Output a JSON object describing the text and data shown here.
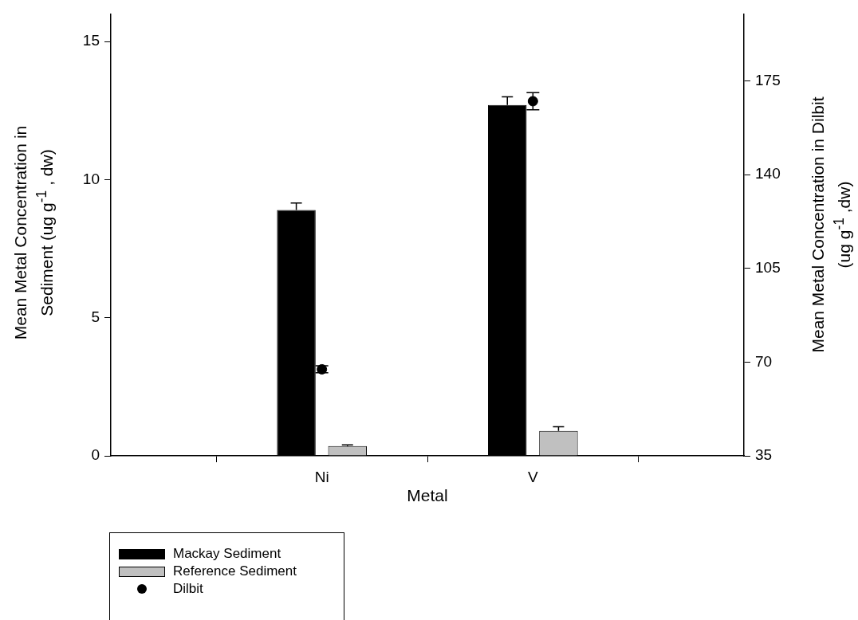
{
  "chart_data": {
    "type": "bar",
    "xlabel": "Metal",
    "ylabel": "Mean Metal Concentration in Sediment (ug g$^{-1}$ , dw)",
    "y2label": "Mean Metal Concentration in Dilbit (ug g$^{-1}$ ,dw)",
    "categories": [
      "Ni",
      "V"
    ],
    "series": [
      {
        "name": "Mackay Sediment",
        "color": "#000000",
        "values": [
          8.9,
          12.7
        ],
        "errors": [
          [
            8.9,
            9.15
          ],
          [
            12.7,
            13.0
          ]
        ]
      },
      {
        "name": "Reference Sediment",
        "color": "#c0c0c0",
        "values": [
          0.35,
          0.9
        ],
        "errors": [
          [
            0.35,
            0.4
          ],
          [
            0.9,
            1.05
          ]
        ]
      },
      {
        "name": "Dilbit",
        "type": "scatter",
        "axis": "y2",
        "color": "#000000",
        "values": [
          67.3,
          167.4
        ],
        "errors": [
          1.3,
          3.2
        ]
      }
    ],
    "ylim": [
      0,
      16
    ],
    "yticks": [
      0,
      5,
      10,
      15
    ],
    "y2lim": [
      35,
      200
    ],
    "y2ticks": [
      35,
      70,
      105,
      140,
      175
    ],
    "marker": "circle",
    "legend": "bottom left"
  }
}
